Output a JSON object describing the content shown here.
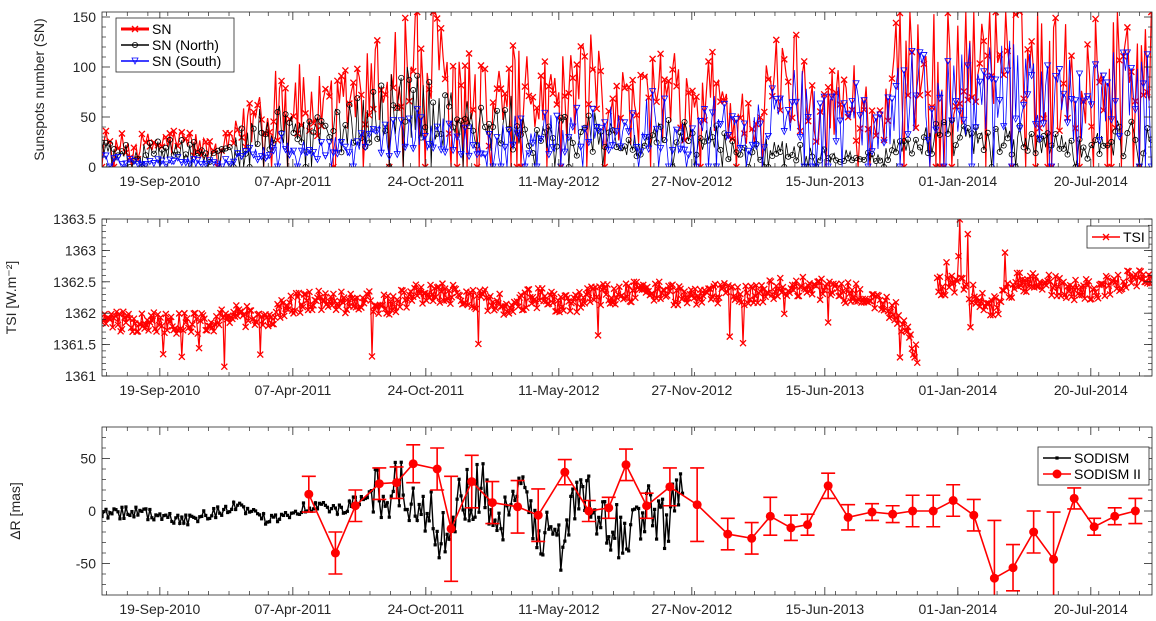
{
  "chart_data": [
    {
      "type": "line",
      "ylabel": "Sunspots number (SN)",
      "xlim": [
        "2010-06-24",
        "2014-10-20"
      ],
      "ylim": [
        0,
        155
      ],
      "yticks": [
        0,
        50,
        100,
        150
      ],
      "xticks": [
        {
          "date": "2010-09-19",
          "label": "19-Sep-2010"
        },
        {
          "date": "2011-04-07",
          "label": "07-Apr-2011"
        },
        {
          "date": "2011-10-24",
          "label": "24-Oct-2011"
        },
        {
          "date": "2012-05-11",
          "label": "11-May-2012"
        },
        {
          "date": "2012-11-27",
          "label": "27-Nov-2012"
        },
        {
          "date": "2013-06-15",
          "label": "15-Jun-2013"
        },
        {
          "date": "2014-01-01",
          "label": "01-Jan-2014"
        },
        {
          "date": "2014-07-20",
          "label": "20-Jul-2014"
        }
      ],
      "grid": false,
      "legend_position": "top-left",
      "series": [
        {
          "name": "SN",
          "color": "#ff0000",
          "marker": "x",
          "x": [
            "2010-06-24",
            "2010-08-01",
            "2010-09-01",
            "2010-10-01",
            "2010-11-01",
            "2010-12-01",
            "2011-01-01",
            "2011-02-01",
            "2011-03-01",
            "2011-04-01",
            "2011-05-01",
            "2011-06-01",
            "2011-07-01",
            "2011-08-01",
            "2011-09-01",
            "2011-10-01",
            "2011-11-01",
            "2011-12-01",
            "2012-01-01",
            "2012-02-01",
            "2012-03-01",
            "2012-04-01",
            "2012-05-01",
            "2012-06-01",
            "2012-07-01",
            "2012-08-01",
            "2012-09-01",
            "2012-10-01",
            "2012-11-01",
            "2012-12-01",
            "2013-01-01",
            "2013-02-01",
            "2013-03-01",
            "2013-04-01",
            "2013-05-01",
            "2013-06-01",
            "2013-07-01",
            "2013-08-01",
            "2013-09-01",
            "2013-10-01",
            "2013-11-01",
            "2013-12-01",
            "2014-01-01",
            "2014-02-01",
            "2014-03-01",
            "2014-04-01",
            "2014-05-01",
            "2014-06-01",
            "2014-07-01",
            "2014-08-01",
            "2014-09-01",
            "2014-10-20"
          ],
          "values": [
            25,
            20,
            22,
            25,
            25,
            18,
            22,
            45,
            75,
            70,
            60,
            55,
            68,
            75,
            100,
            110,
            110,
            85,
            72,
            58,
            82,
            65,
            72,
            70,
            85,
            72,
            58,
            78,
            72,
            55,
            78,
            48,
            52,
            82,
            90,
            70,
            65,
            70,
            45,
            95,
            110,
            105,
            105,
            110,
            115,
            120,
            105,
            95,
            95,
            95,
            110,
            120
          ]
        },
        {
          "name": "SN (North)",
          "color": "#000000",
          "marker": "o",
          "x": [
            "2010-06-24",
            "2010-08-01",
            "2010-09-01",
            "2010-10-01",
            "2010-11-01",
            "2010-12-01",
            "2011-01-01",
            "2011-02-01",
            "2011-03-01",
            "2011-04-01",
            "2011-05-01",
            "2011-06-01",
            "2011-07-01",
            "2011-08-01",
            "2011-09-01",
            "2011-10-01",
            "2011-11-01",
            "2011-12-01",
            "2012-01-01",
            "2012-02-01",
            "2012-03-01",
            "2012-04-01",
            "2012-05-01",
            "2012-06-01",
            "2012-07-01",
            "2012-08-01",
            "2012-09-01",
            "2012-10-01",
            "2012-11-01",
            "2012-12-01",
            "2013-01-01",
            "2013-02-01",
            "2013-03-01",
            "2013-04-01",
            "2013-05-01",
            "2013-06-01",
            "2013-07-01",
            "2013-08-01",
            "2013-09-01",
            "2013-10-01",
            "2013-11-01",
            "2013-12-01",
            "2014-01-01",
            "2014-02-01",
            "2014-03-01",
            "2014-04-01",
            "2014-05-01",
            "2014-06-01",
            "2014-07-01",
            "2014-08-01",
            "2014-09-01",
            "2014-10-20"
          ],
          "values": [
            18,
            15,
            15,
            18,
            17,
            12,
            15,
            30,
            45,
            40,
            38,
            35,
            40,
            50,
            62,
            70,
            65,
            55,
            40,
            35,
            45,
            30,
            35,
            30,
            38,
            30,
            20,
            25,
            35,
            25,
            28,
            15,
            15,
            20,
            18,
            15,
            10,
            15,
            8,
            20,
            25,
            30,
            30,
            25,
            25,
            30,
            25,
            20,
            20,
            25,
            30,
            30
          ]
        },
        {
          "name": "SN (South)",
          "color": "#0000ff",
          "marker": "v",
          "x": [
            "2010-06-24",
            "2010-08-01",
            "2010-09-01",
            "2010-10-01",
            "2010-11-01",
            "2010-12-01",
            "2011-01-01",
            "2011-02-01",
            "2011-03-01",
            "2011-04-01",
            "2011-05-01",
            "2011-06-01",
            "2011-07-01",
            "2011-08-01",
            "2011-09-01",
            "2011-10-01",
            "2011-11-01",
            "2011-12-01",
            "2012-01-01",
            "2012-02-01",
            "2012-03-01",
            "2012-04-01",
            "2012-05-01",
            "2012-06-01",
            "2012-07-01",
            "2012-08-01",
            "2012-09-01",
            "2012-10-01",
            "2012-11-01",
            "2012-12-01",
            "2013-01-01",
            "2013-02-01",
            "2013-03-01",
            "2013-04-01",
            "2013-05-01",
            "2013-06-01",
            "2013-07-01",
            "2013-08-01",
            "2013-09-01",
            "2013-10-01",
            "2013-11-01",
            "2013-12-01",
            "2014-01-01",
            "2014-02-01",
            "2014-03-01",
            "2014-04-01",
            "2014-05-01",
            "2014-06-01",
            "2014-07-01",
            "2014-08-01",
            "2014-09-01",
            "2014-10-20"
          ],
          "values": [
            8,
            5,
            5,
            6,
            6,
            5,
            6,
            12,
            20,
            22,
            20,
            18,
            22,
            25,
            30,
            35,
            38,
            30,
            28,
            22,
            35,
            32,
            35,
            38,
            45,
            40,
            35,
            50,
            40,
            30,
            48,
            30,
            35,
            60,
            70,
            55,
            55,
            55,
            35,
            70,
            80,
            70,
            75,
            80,
            85,
            85,
            75,
            70,
            70,
            65,
            75,
            85
          ]
        }
      ]
    },
    {
      "type": "line",
      "ylabel": "TSI [W.m⁻²]",
      "xlim": [
        "2010-06-24",
        "2014-10-20"
      ],
      "ylim": [
        1361,
        1363.5
      ],
      "yticks": [
        1361,
        1361.5,
        1362,
        1362.5,
        1363,
        1363.5
      ],
      "xticks": [
        {
          "date": "2010-09-19",
          "label": "19-Sep-2010"
        },
        {
          "date": "2011-04-07",
          "label": "07-Apr-2011"
        },
        {
          "date": "2011-10-24",
          "label": "24-Oct-2011"
        },
        {
          "date": "2012-05-11",
          "label": "11-May-2012"
        },
        {
          "date": "2012-11-27",
          "label": "27-Nov-2012"
        },
        {
          "date": "2013-06-15",
          "label": "15-Jun-2013"
        },
        {
          "date": "2014-01-01",
          "label": "01-Jan-2014"
        },
        {
          "date": "2014-07-20",
          "label": "20-Jul-2014"
        }
      ],
      "grid": false,
      "legend_position": "top-right",
      "series": [
        {
          "name": "TSI",
          "color": "#ff0000",
          "marker": "x",
          "segments": [
            {
              "x": [
                "2010-06-24",
                "2010-08-01",
                "2010-09-01",
                "2010-10-01",
                "2010-11-01",
                "2010-12-01",
                "2011-01-01",
                "2011-02-01",
                "2011-03-01",
                "2011-04-01",
                "2011-05-01",
                "2011-06-01",
                "2011-07-01",
                "2011-08-01",
                "2011-09-01",
                "2011-10-01",
                "2011-11-01",
                "2011-12-01",
                "2012-01-01",
                "2012-02-01",
                "2012-03-01",
                "2012-04-01",
                "2012-05-01",
                "2012-06-01",
                "2012-07-01",
                "2012-08-01",
                "2012-09-01",
                "2012-10-01",
                "2012-11-01",
                "2012-12-01",
                "2013-01-01",
                "2013-02-01",
                "2013-03-01",
                "2013-04-01",
                "2013-05-01",
                "2013-06-01",
                "2013-07-01",
                "2013-08-01",
                "2013-09-01",
                "2013-10-01",
                "2013-11-01"
              ],
              "values": [
                1361.85,
                1361.85,
                1361.85,
                1361.85,
                1361.85,
                1361.85,
                1361.95,
                1361.95,
                1361.9,
                1362.15,
                1362.2,
                1362.2,
                1362.15,
                1362.2,
                1362.1,
                1362.3,
                1362.35,
                1362.3,
                1362.25,
                1362.2,
                1362.05,
                1362.25,
                1362.2,
                1362.15,
                1362.3,
                1362.3,
                1362.35,
                1362.35,
                1362.3,
                1362.3,
                1362.3,
                1362.3,
                1362.3,
                1362.4,
                1362.4,
                1362.4,
                1362.35,
                1362.3,
                1362.2,
                1362.0,
                1361.3
              ]
            },
            {
              "x": [
                "2013-12-01",
                "2014-01-01",
                "2014-02-01",
                "2014-03-01",
                "2014-04-01",
                "2014-05-01",
                "2014-06-01",
                "2014-07-01",
                "2014-08-01",
                "2014-09-01",
                "2014-10-20"
              ],
              "values": [
                1362.4,
                1362.5,
                1362.2,
                1362.1,
                1362.5,
                1362.5,
                1362.4,
                1362.35,
                1362.4,
                1362.5,
                1362.6
              ]
            }
          ]
        }
      ]
    },
    {
      "type": "line",
      "ylabel": "ΔR [mas]",
      "xlim": [
        "2010-06-24",
        "2014-10-20"
      ],
      "ylim": [
        -80,
        80
      ],
      "yticks": [
        -50,
        0,
        50
      ],
      "xticks": [
        {
          "date": "2010-09-19",
          "label": "19-Sep-2010"
        },
        {
          "date": "2011-04-07",
          "label": "07-Apr-2011"
        },
        {
          "date": "2011-10-24",
          "label": "24-Oct-2011"
        },
        {
          "date": "2012-05-11",
          "label": "11-May-2012"
        },
        {
          "date": "2012-11-27",
          "label": "27-Nov-2012"
        },
        {
          "date": "2013-06-15",
          "label": "15-Jun-2013"
        },
        {
          "date": "2014-01-01",
          "label": "01-Jan-2014"
        },
        {
          "date": "2014-07-20",
          "label": "20-Jul-2014"
        }
      ],
      "grid": false,
      "legend_position": "top-right",
      "series": [
        {
          "name": "SODISM",
          "color": "#000000",
          "marker": "s",
          "x": [
            "2010-06-24",
            "2010-07-15",
            "2010-08-15",
            "2010-09-15",
            "2010-10-15",
            "2010-11-15",
            "2010-12-15",
            "2011-01-15",
            "2011-02-15",
            "2011-03-15",
            "2011-04-15",
            "2011-05-15",
            "2011-06-15",
            "2011-07-15",
            "2011-08-15",
            "2011-09-15",
            "2011-10-15",
            "2011-11-15",
            "2011-12-15",
            "2012-01-15",
            "2012-02-15",
            "2012-03-15",
            "2012-04-15",
            "2012-05-15",
            "2012-06-15",
            "2012-07-15",
            "2012-08-15",
            "2012-09-15",
            "2012-10-15",
            "2012-11-15"
          ],
          "values": [
            0,
            -2,
            0,
            -5,
            -10,
            -5,
            0,
            5,
            -8,
            -5,
            2,
            5,
            0,
            10,
            15,
            20,
            5,
            -20,
            10,
            25,
            -15,
            15,
            -20,
            -30,
            20,
            -15,
            -20,
            0,
            -10,
            15
          ]
        },
        {
          "name": "SODISM II",
          "color": "#ff0000",
          "marker": "o",
          "points": [
            {
              "x": "2011-05-01",
              "y": 16,
              "err": 17
            },
            {
              "x": "2011-06-10",
              "y": -40,
              "err": 20
            },
            {
              "x": "2011-07-10",
              "y": 5,
              "err": 15
            },
            {
              "x": "2011-08-15",
              "y": 26,
              "err": 15
            },
            {
              "x": "2011-09-10",
              "y": 27,
              "err": 15
            },
            {
              "x": "2011-10-05",
              "y": 45,
              "err": 18
            },
            {
              "x": "2011-11-10",
              "y": 40,
              "err": 20
            },
            {
              "x": "2011-12-01",
              "y": -17,
              "err": 50
            },
            {
              "x": "2012-01-01",
              "y": 28,
              "err": 25
            },
            {
              "x": "2012-02-01",
              "y": 8,
              "err": 20
            },
            {
              "x": "2012-03-10",
              "y": 4,
              "err": 25
            },
            {
              "x": "2012-04-10",
              "y": -4,
              "err": 25
            },
            {
              "x": "2012-05-20",
              "y": 37,
              "err": 12
            },
            {
              "x": "2012-06-25",
              "y": 0,
              "err": 10
            },
            {
              "x": "2012-07-25",
              "y": 3,
              "err": 10
            },
            {
              "x": "2012-08-20",
              "y": 44,
              "err": 15
            },
            {
              "x": "2012-09-20",
              "y": 5,
              "err": 12
            },
            {
              "x": "2012-10-25",
              "y": 23,
              "err": 18
            },
            {
              "x": "2012-12-05",
              "y": 6,
              "err": 35
            },
            {
              "x": "2013-01-20",
              "y": -22,
              "err": 15
            },
            {
              "x": "2013-02-25",
              "y": -26,
              "err": 15
            },
            {
              "x": "2013-03-25",
              "y": -5,
              "err": 18
            },
            {
              "x": "2013-04-25",
              "y": -16,
              "err": 12
            },
            {
              "x": "2013-05-20",
              "y": -13,
              "err": 10
            },
            {
              "x": "2013-06-20",
              "y": 24,
              "err": 12
            },
            {
              "x": "2013-07-20",
              "y": -6,
              "err": 12
            },
            {
              "x": "2013-08-25",
              "y": -1,
              "err": 8
            },
            {
              "x": "2013-09-25",
              "y": -3,
              "err": 8
            },
            {
              "x": "2013-10-25",
              "y": 0,
              "err": 15
            },
            {
              "x": "2013-11-25",
              "y": 0,
              "err": 15
            },
            {
              "x": "2013-12-25",
              "y": 10,
              "err": 15
            },
            {
              "x": "2014-01-25",
              "y": -4,
              "err": 15
            },
            {
              "x": "2014-02-25",
              "y": -64,
              "err": 55
            },
            {
              "x": "2014-03-25",
              "y": -54,
              "err": 22
            },
            {
              "x": "2014-04-25",
              "y": -20,
              "err": 20
            },
            {
              "x": "2014-05-25",
              "y": -46,
              "err": 45
            },
            {
              "x": "2014-06-25",
              "y": 12,
              "err": 10
            },
            {
              "x": "2014-07-25",
              "y": -15,
              "err": 8
            },
            {
              "x": "2014-08-25",
              "y": -5,
              "err": 8
            },
            {
              "x": "2014-09-25",
              "y": 0,
              "err": 12
            }
          ]
        }
      ]
    }
  ]
}
